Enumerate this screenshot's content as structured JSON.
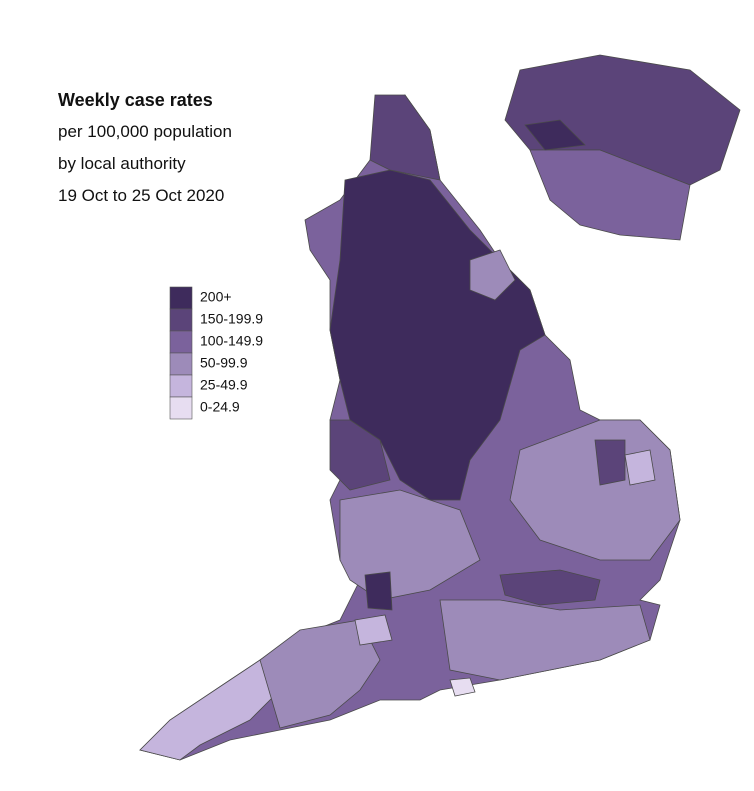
{
  "title": "Weekly case rates",
  "subtitle": [
    "per 100,000 population",
    "by local authority",
    "19 Oct to 25 Oct 2020"
  ],
  "legend": [
    {
      "label": "200+",
      "color": "#3e2b5c"
    },
    {
      "label": "150-199.9",
      "color": "#5b4479"
    },
    {
      "label": "100-149.9",
      "color": "#7b629c"
    },
    {
      "label": "50-99.9",
      "color": "#9d8bb9"
    },
    {
      "label": "25-49.9",
      "color": "#c5b5dd"
    },
    {
      "label": "0-24.9",
      "color": "#e7ddf1"
    }
  ]
}
